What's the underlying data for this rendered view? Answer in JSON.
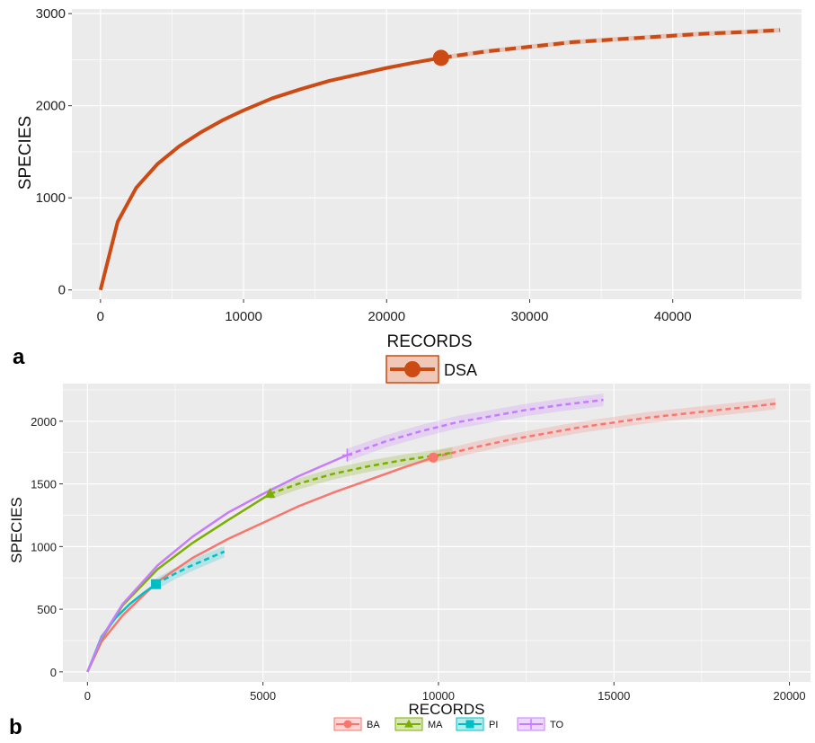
{
  "chart_data": [
    {
      "panel_label": "a",
      "type": "line",
      "xlabel": "RECORDS",
      "ylabel": "SPECIES",
      "xlim": [
        -2000,
        49000
      ],
      "ylim": [
        -100,
        3050
      ],
      "x_ticks": [
        0,
        10000,
        20000,
        30000,
        40000
      ],
      "y_ticks": [
        0,
        1000,
        2000,
        3000
      ],
      "grid": true,
      "legend_position": "bottom",
      "series": [
        {
          "name": "DSA",
          "color": "#cc4a14",
          "marker": "circle",
          "interpolated": {
            "x": [
              0,
              1200,
              2500,
              4000,
              5500,
              7000,
              8500,
              10000,
              12000,
              14000,
              16000,
              18000,
              20000,
              22000,
              23800
            ],
            "y": [
              0,
              740,
              1110,
              1370,
              1560,
              1710,
              1840,
              1950,
              2080,
              2180,
              2270,
              2340,
              2410,
              2470,
              2520
            ]
          },
          "observed": {
            "x": 23800,
            "y": 2520
          },
          "extrapolated": {
            "x": [
              23800,
              27000,
              30000,
              33000,
              36000,
              39000,
              42000,
              45000,
              47500
            ],
            "y": [
              2520,
              2590,
              2640,
              2690,
              2720,
              2750,
              2780,
              2800,
              2820
            ]
          },
          "ci_halfwidth": 25
        }
      ]
    },
    {
      "panel_label": "b",
      "type": "line",
      "xlabel": "RECORDS",
      "ylabel": "SPECIES",
      "xlim": [
        -700,
        20600
      ],
      "ylim": [
        -80,
        2300
      ],
      "x_ticks": [
        0,
        5000,
        10000,
        15000,
        20000
      ],
      "y_ticks": [
        0,
        500,
        1000,
        1500,
        2000
      ],
      "grid": true,
      "legend_position": "bottom",
      "series": [
        {
          "name": "BA",
          "color": "#f8766d",
          "marker": "circle",
          "interpolated": {
            "x": [
              0,
              400,
              1000,
              2000,
              3000,
              4000,
              5000,
              6000,
              7000,
              8000,
              9000,
              9850
            ],
            "y": [
              0,
              240,
              450,
              720,
              910,
              1060,
              1190,
              1320,
              1430,
              1530,
              1630,
              1710
            ]
          },
          "observed": {
            "x": 9850,
            "y": 1710
          },
          "extrapolated": {
            "x": [
              9850,
              11000,
              12000,
              13000,
              14000,
              15000,
              16000,
              17000,
              18000,
              19000,
              19600
            ],
            "y": [
              1710,
              1790,
              1850,
              1900,
              1950,
              1990,
              2030,
              2060,
              2090,
              2120,
              2140
            ]
          },
          "ci_halfwidth": 45
        },
        {
          "name": "MA",
          "color": "#7cae00",
          "marker": "triangle",
          "interpolated": {
            "x": [
              0,
              400,
              1000,
              2000,
              3000,
              4000,
              5200
            ],
            "y": [
              0,
              260,
              530,
              820,
              1030,
              1210,
              1420
            ]
          },
          "observed": {
            "x": 5200,
            "y": 1420
          },
          "extrapolated": {
            "x": [
              5200,
              6000,
              7000,
              8000,
              9000,
              10000,
              10400
            ],
            "y": [
              1420,
              1500,
              1580,
              1640,
              1690,
              1730,
              1750
            ]
          },
          "ci_halfwidth": 45
        },
        {
          "name": "PI",
          "color": "#00bfc4",
          "marker": "square",
          "interpolated": {
            "x": [
              0,
              400,
              800,
              1200,
              1600,
              1950
            ],
            "y": [
              0,
              280,
              430,
              540,
              630,
              700
            ]
          },
          "observed": {
            "x": 1950,
            "y": 700
          },
          "extrapolated": {
            "x": [
              1950,
              2400,
              2900,
              3400,
              3900
            ],
            "y": [
              700,
              770,
              840,
              900,
              960
            ]
          },
          "ci_halfwidth": 45
        },
        {
          "name": "TO",
          "color": "#c77cff",
          "marker": "cross",
          "interpolated": {
            "x": [
              0,
              400,
              1000,
              2000,
              3000,
              4000,
              5000,
              6000,
              7400
            ],
            "y": [
              0,
              270,
              540,
              850,
              1080,
              1270,
              1420,
              1560,
              1730
            ]
          },
          "observed": {
            "x": 7400,
            "y": 1730
          },
          "extrapolated": {
            "x": [
              7400,
              8500,
              9500,
              10500,
              11500,
              12500,
              13500,
              14700
            ],
            "y": [
              1730,
              1840,
              1920,
              1990,
              2040,
              2090,
              2130,
              2170
            ]
          },
          "ci_halfwidth": 50
        }
      ]
    }
  ]
}
